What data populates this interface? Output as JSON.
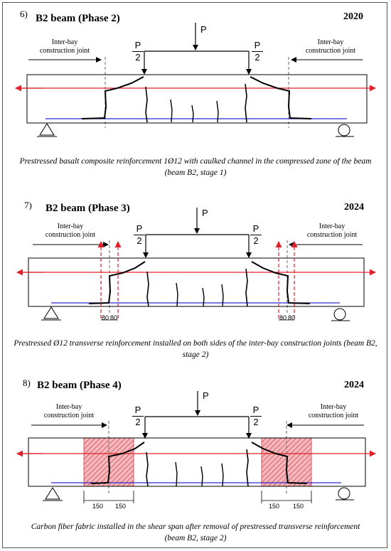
{
  "panels": [
    {
      "number": "6)",
      "title": "B2 beam (Phase 2)",
      "year": "2020",
      "joint_left": [
        "Inter-bay",
        "construction joint"
      ],
      "joint_right": [
        "Inter-bay",
        "construction joint"
      ],
      "load_label": "P",
      "half_load_num": "P",
      "half_load_den": "2",
      "caption": "Prestressed basalt composite reinforcement 1Ø12 with caulked channel in the compressed zone of the beam (beam B2, stage 1)"
    },
    {
      "number": "7)",
      "title": "B2 beam (Phase 3)",
      "year": "2024",
      "joint_left": [
        "Inter-bay",
        "construction joint"
      ],
      "joint_right": [
        "Inter-bay",
        "construction joint"
      ],
      "load_label": "P",
      "half_load_num": "P",
      "half_load_den": "2",
      "dims_left": [
        "80",
        "80"
      ],
      "dims_right": [
        "80",
        "80"
      ],
      "caption": "Prestressed Ø12 transverse reinforcement installed on both sides of the inter-bay construction joints (beam B2, stage 2)"
    },
    {
      "number": "8)",
      "title": "B2 beam (Phase 4)",
      "year": "2024",
      "joint_left": [
        "Inter-bay",
        "construction joint"
      ],
      "joint_right": [
        "Inter-bay",
        "construction joint"
      ],
      "load_label": "P",
      "half_load_num": "P",
      "half_load_den": "2",
      "dims_left": [
        "150",
        "150"
      ],
      "dims_right": [
        "150",
        "150"
      ],
      "caption": "Carbon fiber fabric installed in the shear span after removal of prestressed transverse reinforcement (beam B2, stage 2)"
    }
  ],
  "colors": {
    "prestress": "#e0202a",
    "rebar": "#2a2ad0",
    "fabric": "#e8868c"
  }
}
